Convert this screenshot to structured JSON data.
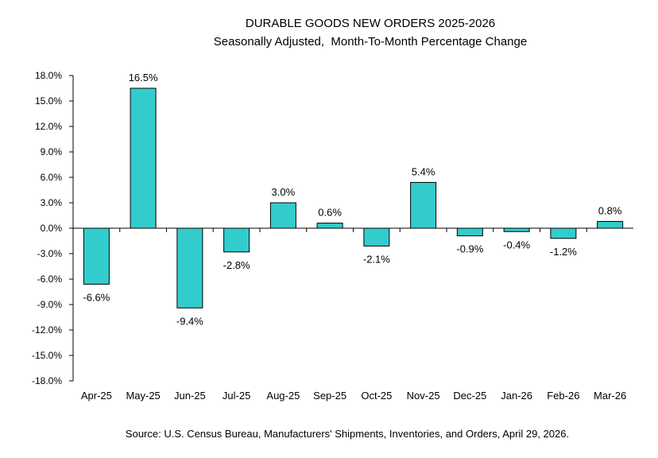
{
  "chart_data": {
    "type": "bar",
    "title": "DURABLE GOODS NEW ORDERS 2025-2026",
    "subtitle": "Seasonally Adjusted,  Month-To-Month Percentage Change",
    "xlabel": "",
    "ylabel": "",
    "categories": [
      "Apr-25",
      "May-25",
      "Jun-25",
      "Jul-25",
      "Aug-25",
      "Sep-25",
      "Oct-25",
      "Nov-25",
      "Dec-25",
      "Jan-26",
      "Feb-26",
      "Mar-26"
    ],
    "values": [
      -6.6,
      16.5,
      -9.4,
      -2.8,
      3.0,
      0.6,
      -2.1,
      5.4,
      -0.9,
      -0.4,
      -1.2,
      0.8
    ],
    "data_labels": [
      "-6.6%",
      "16.5%",
      "-9.4%",
      "-2.8%",
      "3.0%",
      "0.6%",
      "-2.1%",
      "5.4%",
      "-0.9%",
      "-0.4%",
      "-1.2%",
      "0.8%"
    ],
    "ylim": [
      -18,
      18
    ],
    "yticks": [
      18,
      15,
      12,
      9,
      6,
      3,
      0,
      -3,
      -6,
      -9,
      -12,
      -15,
      -18
    ],
    "ytick_labels": [
      "18.0%",
      "15.0%",
      "12.0%",
      "9.0%",
      "6.0%",
      "3.0%",
      "0.0%",
      "-3.0%",
      "-6.0%",
      "-9.0%",
      "-12.0%",
      "-15.0%",
      "-18.0%"
    ],
    "grid": false,
    "legend": "none",
    "bar_color": "#33CCCC",
    "source": "Source: U.S. Census Bureau, Manufacturers' Shipments, Inventories, and Orders, April 29, 2026."
  }
}
